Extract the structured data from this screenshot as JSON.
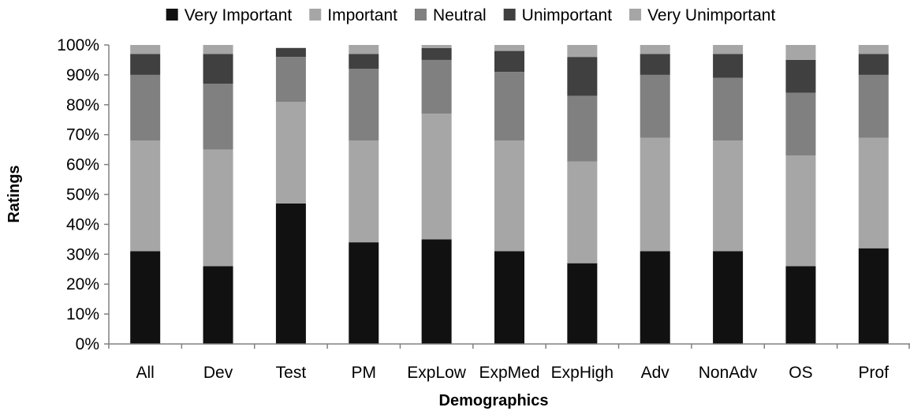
{
  "chart_data": {
    "type": "bar",
    "stacked": true,
    "percent_stacked": true,
    "xlabel": "Demographics",
    "ylabel": "Ratings",
    "ylim": [
      0,
      100
    ],
    "yticks": [
      "0%",
      "10%",
      "20%",
      "30%",
      "40%",
      "50%",
      "60%",
      "70%",
      "80%",
      "90%",
      "100%"
    ],
    "grid": false,
    "legend_position": "top",
    "categories": [
      "All",
      "Dev",
      "Test",
      "PM",
      "ExpLow",
      "ExpMed",
      "ExpHigh",
      "Adv",
      "NonAdv",
      "OS",
      "Prof"
    ],
    "series": [
      {
        "name": "Very Important",
        "color": "#111111",
        "values": [
          31,
          26,
          47,
          34,
          35,
          31,
          27,
          31,
          31,
          26,
          32
        ]
      },
      {
        "name": "Important",
        "color": "#a6a6a6",
        "values": [
          37,
          39,
          34,
          34,
          42,
          37,
          34,
          38,
          37,
          37,
          37
        ]
      },
      {
        "name": "Neutral",
        "color": "#808080",
        "values": [
          22,
          22,
          15,
          24,
          18,
          23,
          22,
          21,
          21,
          21,
          21
        ]
      },
      {
        "name": "Unimportant",
        "color": "#404040",
        "values": [
          7,
          10,
          3,
          5,
          4,
          7,
          13,
          7,
          8,
          11,
          7
        ]
      },
      {
        "name": "Very Unimportant",
        "color": "#a6a6a6",
        "values": [
          3,
          3,
          0,
          3,
          1,
          2,
          4,
          3,
          3,
          5,
          3
        ]
      }
    ]
  }
}
